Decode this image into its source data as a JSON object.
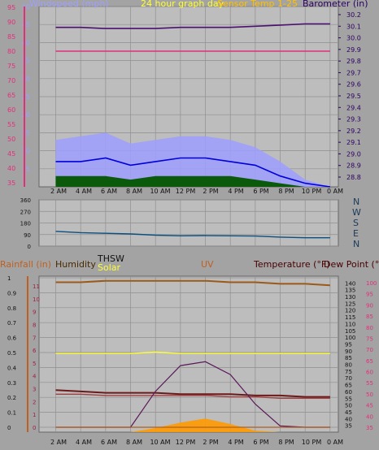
{
  "header": {
    "windspeed": "Windspeed (mph)",
    "title": "24 hour graph day",
    "sensor": "Sensor Temp 1-25",
    "barometer": "Barometer (in)"
  },
  "bottom_header": {
    "rainfall": "Rainfall (in)",
    "humidity": "Humidity",
    "thsw": "THSW",
    "solar": "Solar",
    "uv": "UV",
    "temperature": "Temperature (°F)",
    "dewpoint": "Dew Point (°F)"
  },
  "compass": [
    "N",
    "W",
    "S",
    "E",
    "N"
  ],
  "time_labels": [
    "2 AM",
    "4 AM",
    "6 AM",
    "8 AM",
    "10 AM",
    "12 PM",
    "2 PM",
    "4 PM",
    "6 PM",
    "8 PM",
    "10 PM",
    "0 AM"
  ],
  "colors": {
    "background": "#a3a3a3",
    "plot": "#bdbdbd",
    "gust": "#9f9fff",
    "wind_avg": "#0000dd",
    "wind_low": "#0b5a0b",
    "barometer": "#4b1070",
    "sensor_temp": "#e0307a",
    "direction": "#0b4f7f",
    "rain": "#b06020",
    "humidity": "#9a5a1a",
    "uv": "#6a2248",
    "solar": "#ffff33",
    "thsw": "#ffff33",
    "temperature": "#6a1a1a",
    "dewpoint": "#a04040",
    "uv_curve": "#5a1858",
    "solar_fill": "#ff9a00",
    "axis_red": "#e0307a",
    "axis_orange": "#c06020"
  },
  "chart_data": [
    {
      "type": "line",
      "x": [
        "2 AM",
        "4 AM",
        "6 AM",
        "8 AM",
        "10 AM",
        "12 PM",
        "2 PM",
        "4 PM",
        "6 PM",
        "8 PM",
        "10 PM",
        "0 AM"
      ],
      "left_axis": {
        "label": "Windspeed (mph)",
        "ylim": [
          0,
          50
        ],
        "ticks": [
          5,
          10,
          15,
          20,
          25,
          30,
          35,
          40,
          45,
          50
        ]
      },
      "left_axis2": {
        "label": "Sensor Temp 1-25",
        "ylim": [
          35,
          95
        ],
        "ticks": [
          35,
          40,
          45,
          50,
          55,
          60,
          65,
          70,
          75,
          80,
          85,
          90,
          95
        ]
      },
      "right_axis": {
        "label": "Barometer (in)",
        "ylim": [
          28.8,
          30.2
        ],
        "ticks": [
          28.8,
          28.9,
          29.0,
          29.1,
          29.2,
          29.3,
          29.4,
          29.5,
          29.6,
          29.7,
          29.8,
          29.9,
          30.0,
          30.1,
          30.2
        ]
      },
      "series": [
        {
          "name": "Barometer (in)",
          "axis": "right",
          "values": [
            30.09,
            30.09,
            30.08,
            30.08,
            30.08,
            30.09,
            30.09,
            30.09,
            30.1,
            30.11,
            30.12,
            30.12
          ]
        },
        {
          "name": "Sensor Temp 1-25",
          "axis": "left2",
          "values": [
            80,
            80,
            80,
            80,
            80,
            80,
            80,
            80,
            80,
            80,
            80,
            80
          ]
        },
        {
          "axis": "left",
          "values": [
            7,
            7,
            8,
            6,
            7,
            8,
            8,
            7,
            6,
            3,
            1,
            0
          ]
        },
        {
          "axis": "left",
          "values": [
            13,
            14,
            15,
            12,
            13,
            14,
            14,
            13,
            11,
            7,
            2,
            0
          ]
        },
        {
          "axis": "left",
          "values": [
            3,
            3,
            3,
            2,
            3,
            3,
            3,
            3,
            2,
            1,
            0,
            0
          ]
        }
      ]
    },
    {
      "type": "line",
      "x": [
        "2 AM",
        "4 AM",
        "6 AM",
        "8 AM",
        "10 AM",
        "12 PM",
        "2 PM",
        "4 PM",
        "6 PM",
        "8 PM",
        "10 PM",
        "0 AM"
      ],
      "left_axis": {
        "ylim": [
          0,
          360
        ],
        "ticks": [
          0,
          90,
          180,
          270,
          360
        ]
      },
      "series": [
        {
          "axis": "left",
          "values": [
            115,
            105,
            100,
            95,
            85,
            80,
            82,
            80,
            78,
            70,
            65,
            65
          ]
        }
      ]
    },
    {
      "type": "line",
      "x": [
        "2 AM",
        "4 AM",
        "6 AM",
        "8 AM",
        "10 AM",
        "12 PM",
        "2 PM",
        "4 PM",
        "6 PM",
        "8 PM",
        "10 PM",
        "0 AM"
      ],
      "rain_axis": {
        "label": "Rainfall (in)",
        "ylim": [
          0,
          1
        ],
        "ticks": [
          0,
          0.1,
          0.2,
          0.3,
          0.4,
          0.5,
          0.6,
          0.7,
          0.8,
          0.9,
          1
        ]
      },
      "humidity_axis": {
        "label": "Humidity",
        "ylim": [
          0,
          100
        ],
        "ticks": [
          0,
          10,
          20,
          30,
          40,
          50,
          60,
          70,
          80,
          90,
          100
        ]
      },
      "uv_axis": {
        "label": "UV",
        "ylim": [
          0,
          11
        ],
        "ticks": [
          0,
          1,
          2,
          3,
          4,
          5,
          6,
          7,
          8,
          9,
          10,
          11
        ]
      },
      "temp_axis": {
        "label": "Temperature (°F)",
        "ylim": [
          30,
          145
        ],
        "ticks": [
          35,
          40,
          45,
          50,
          55,
          60,
          65,
          70,
          75,
          80,
          85,
          90,
          95,
          100,
          105,
          110,
          115,
          120,
          125,
          130,
          135,
          140
        ]
      },
      "dewpoint_axis": {
        "label": "Dew Point (°F)",
        "ylim": [
          35,
          100
        ],
        "ticks": [
          35,
          40,
          45,
          50,
          55,
          60,
          65,
          70,
          75,
          80,
          85,
          90,
          95,
          100
        ]
      },
      "series": [
        {
          "name": "Humidity",
          "axis": "humidity",
          "values": [
            97,
            97,
            98,
            98,
            98,
            98,
            98,
            97,
            97,
            96,
            96,
            95
          ]
        },
        {
          "name": "Rainfall (in)",
          "axis": "rain",
          "values": [
            0,
            0,
            0,
            0,
            0,
            0,
            0,
            0,
            0,
            0,
            0,
            0
          ]
        },
        {
          "name": "UV",
          "axis": "uv",
          "values": [
            0,
            0,
            0,
            0,
            2.8,
            4.8,
            5.1,
            4.1,
            1.8,
            0.1,
            0,
            0
          ]
        },
        {
          "name": "Solar",
          "axis": "temp",
          "values": [
            88,
            88,
            88,
            88,
            89,
            88,
            88,
            88,
            88,
            88,
            88,
            88
          ]
        },
        {
          "name": "THSW",
          "axis": "temp",
          "values": [
            30,
            30,
            30,
            30,
            33,
            37,
            40,
            36,
            31,
            30,
            30,
            30
          ]
        },
        {
          "name": "Temperature (°F)",
          "axis": "temp",
          "values": [
            61,
            60,
            59,
            59,
            59,
            58,
            58,
            58,
            57,
            57,
            56,
            56
          ]
        },
        {
          "name": "Dew Point (°F)",
          "axis": "temp",
          "values": [
            58,
            58,
            57,
            57,
            57,
            57,
            57,
            56,
            56,
            55,
            55,
            55
          ]
        }
      ]
    }
  ]
}
